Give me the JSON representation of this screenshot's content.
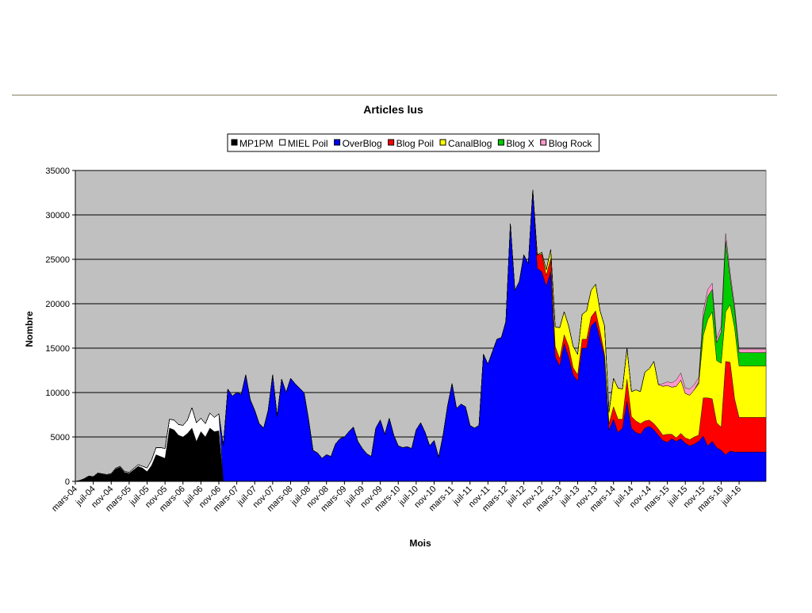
{
  "chart_data": {
    "type": "area",
    "stacked": true,
    "title": "Articles lus",
    "xlabel": "Mois",
    "ylabel": "Nombre",
    "ylim": [
      0,
      35000
    ],
    "yticks": [
      0,
      5000,
      10000,
      15000,
      20000,
      25000,
      30000,
      35000
    ],
    "grid": true,
    "legend_position": "top",
    "plot_background": "#c0c0c0",
    "x_tick_labels": [
      "mars-04",
      "juil-04",
      "nov-04",
      "mars-05",
      "juil-05",
      "nov-05",
      "mars-06",
      "juil-06",
      "nov-06",
      "mars-07",
      "juil-07",
      "nov-07",
      "mars-08",
      "juil-08",
      "nov-08",
      "mars-09",
      "juil-09",
      "nov-09",
      "mars-10",
      "juil-10",
      "nov-10",
      "mars-11",
      "juil-11",
      "nov-11",
      "mars-12",
      "juil-12",
      "nov-12",
      "mars-13",
      "juil-13",
      "nov-13",
      "mars-14",
      "juil-14",
      "nov-14",
      "mars-15",
      "juil-15",
      "nov-15",
      "mars-16",
      "juil-16"
    ],
    "months_count": 155,
    "series": [
      {
        "name": "MP1PM",
        "color": "#000000",
        "kp": [
          [
            0,
            0
          ],
          [
            1,
            100
          ],
          [
            2,
            300
          ],
          [
            3,
            600
          ],
          [
            4,
            500
          ],
          [
            5,
            900
          ],
          [
            6,
            800
          ],
          [
            7,
            700
          ],
          [
            8,
            800
          ],
          [
            9,
            1400
          ],
          [
            10,
            1600
          ],
          [
            11,
            1000
          ],
          [
            12,
            900
          ],
          [
            13,
            1300
          ],
          [
            14,
            1700
          ],
          [
            15,
            1500
          ],
          [
            16,
            1100
          ],
          [
            17,
            1800
          ],
          [
            18,
            3000
          ],
          [
            19,
            2800
          ],
          [
            20,
            2600
          ],
          [
            21,
            6000
          ],
          [
            22,
            5800
          ],
          [
            23,
            5200
          ],
          [
            24,
            5000
          ],
          [
            25,
            5400
          ],
          [
            26,
            6000
          ],
          [
            27,
            4500
          ],
          [
            28,
            5600
          ],
          [
            29,
            5000
          ],
          [
            30,
            6000
          ],
          [
            31,
            5600
          ],
          [
            32,
            5700
          ],
          [
            33,
            0
          ]
        ]
      },
      {
        "name": "MIEL Poil",
        "color": "#ffffff",
        "kp": [
          [
            0,
            0
          ],
          [
            3,
            0
          ],
          [
            6,
            50
          ],
          [
            9,
            80
          ],
          [
            12,
            120
          ],
          [
            15,
            200
          ],
          [
            16,
            400
          ],
          [
            17,
            600
          ],
          [
            18,
            800
          ],
          [
            19,
            1000
          ],
          [
            20,
            1100
          ],
          [
            21,
            1000
          ],
          [
            22,
            1100
          ],
          [
            23,
            1200
          ],
          [
            24,
            1300
          ],
          [
            25,
            1500
          ],
          [
            26,
            2300
          ],
          [
            27,
            2100
          ],
          [
            28,
            1500
          ],
          [
            29,
            1500
          ],
          [
            30,
            1700
          ],
          [
            31,
            1600
          ],
          [
            32,
            1900
          ],
          [
            33,
            0
          ]
        ]
      },
      {
        "name": "OverBlog",
        "color": "#0000ff",
        "kp": [
          [
            0,
            0
          ],
          [
            32,
            0
          ],
          [
            33,
            4000
          ],
          [
            34,
            10400
          ],
          [
            35,
            9600
          ],
          [
            36,
            10000
          ],
          [
            37,
            9800
          ],
          [
            38,
            12000
          ],
          [
            39,
            9200
          ],
          [
            40,
            8000
          ],
          [
            41,
            6500
          ],
          [
            42,
            6000
          ],
          [
            43,
            8000
          ],
          [
            44,
            12000
          ],
          [
            45,
            7300
          ],
          [
            46,
            11500
          ],
          [
            47,
            10000
          ],
          [
            48,
            11600
          ],
          [
            49,
            11000
          ],
          [
            50,
            10500
          ],
          [
            51,
            10000
          ],
          [
            52,
            7000
          ],
          [
            53,
            3500
          ],
          [
            54,
            3200
          ],
          [
            55,
            2600
          ],
          [
            56,
            3000
          ],
          [
            57,
            2800
          ],
          [
            58,
            4200
          ],
          [
            59,
            4800
          ],
          [
            60,
            5000
          ],
          [
            61,
            5600
          ],
          [
            62,
            6100
          ],
          [
            63,
            4500
          ],
          [
            64,
            3700
          ],
          [
            65,
            3100
          ],
          [
            66,
            2800
          ],
          [
            67,
            6000
          ],
          [
            68,
            6900
          ],
          [
            69,
            5300
          ],
          [
            70,
            7100
          ],
          [
            71,
            5200
          ],
          [
            72,
            4000
          ],
          [
            73,
            3800
          ],
          [
            74,
            3900
          ],
          [
            75,
            3700
          ],
          [
            76,
            5800
          ],
          [
            77,
            6600
          ],
          [
            78,
            5500
          ],
          [
            79,
            4000
          ],
          [
            80,
            4600
          ],
          [
            81,
            2700
          ],
          [
            82,
            5200
          ],
          [
            83,
            8500
          ],
          [
            84,
            11000
          ],
          [
            85,
            8200
          ],
          [
            86,
            8700
          ],
          [
            87,
            8400
          ],
          [
            88,
            6300
          ],
          [
            89,
            6000
          ],
          [
            90,
            6300
          ],
          [
            91,
            14300
          ],
          [
            92,
            13200
          ],
          [
            93,
            14600
          ],
          [
            94,
            16000
          ],
          [
            95,
            16200
          ],
          [
            96,
            18000
          ],
          [
            97,
            29000
          ],
          [
            98,
            21500
          ],
          [
            99,
            22500
          ],
          [
            100,
            25500
          ],
          [
            101,
            24500
          ],
          [
            102,
            32800
          ],
          [
            103,
            24000
          ],
          [
            104,
            23600
          ],
          [
            105,
            22000
          ],
          [
            106,
            23600
          ],
          [
            107,
            14000
          ],
          [
            108,
            13000
          ],
          [
            109,
            15500
          ],
          [
            110,
            14000
          ],
          [
            111,
            12000
          ],
          [
            112,
            11300
          ],
          [
            113,
            15000
          ],
          [
            114,
            15000
          ],
          [
            115,
            17500
          ],
          [
            116,
            18000
          ],
          [
            117,
            16000
          ],
          [
            118,
            14000
          ],
          [
            119,
            5800
          ],
          [
            120,
            7000
          ],
          [
            121,
            5500
          ],
          [
            122,
            6000
          ],
          [
            123,
            9000
          ],
          [
            124,
            6000
          ],
          [
            125,
            5500
          ],
          [
            126,
            5300
          ],
          [
            127,
            6000
          ],
          [
            128,
            6200
          ],
          [
            129,
            5800
          ],
          [
            130,
            5200
          ],
          [
            131,
            4600
          ],
          [
            132,
            4400
          ],
          [
            133,
            4800
          ],
          [
            134,
            4500
          ],
          [
            135,
            4800
          ],
          [
            136,
            4300
          ],
          [
            137,
            4000
          ],
          [
            138,
            4200
          ],
          [
            139,
            4500
          ],
          [
            140,
            5100
          ],
          [
            141,
            4000
          ],
          [
            142,
            4500
          ],
          [
            143,
            3800
          ],
          [
            144,
            3500
          ],
          [
            145,
            3000
          ],
          [
            146,
            3400
          ],
          [
            147,
            3300
          ],
          [
            148,
            3300
          ]
        ]
      },
      {
        "name": "Blog Poil",
        "color": "#ff0000",
        "kp": [
          [
            0,
            0
          ],
          [
            102,
            0
          ],
          [
            103,
            1500
          ],
          [
            104,
            2000
          ],
          [
            105,
            1200
          ],
          [
            106,
            1500
          ],
          [
            107,
            1200
          ],
          [
            108,
            800
          ],
          [
            109,
            1000
          ],
          [
            110,
            1200
          ],
          [
            111,
            800
          ],
          [
            112,
            700
          ],
          [
            113,
            1000
          ],
          [
            114,
            1000
          ],
          [
            115,
            1000
          ],
          [
            116,
            1200
          ],
          [
            117,
            900
          ],
          [
            118,
            300
          ],
          [
            119,
            700
          ],
          [
            120,
            1400
          ],
          [
            121,
            1500
          ],
          [
            122,
            1000
          ],
          [
            123,
            2500
          ],
          [
            124,
            1300
          ],
          [
            125,
            1300
          ],
          [
            126,
            1200
          ],
          [
            127,
            800
          ],
          [
            128,
            700
          ],
          [
            129,
            700
          ],
          [
            130,
            700
          ],
          [
            131,
            600
          ],
          [
            132,
            900
          ],
          [
            133,
            500
          ],
          [
            134,
            400
          ],
          [
            135,
            600
          ],
          [
            136,
            600
          ],
          [
            137,
            700
          ],
          [
            138,
            800
          ],
          [
            139,
            700
          ],
          [
            140,
            4300
          ],
          [
            141,
            5400
          ],
          [
            142,
            4800
          ],
          [
            143,
            2800
          ],
          [
            144,
            2600
          ],
          [
            145,
            10500
          ],
          [
            146,
            10000
          ],
          [
            147,
            6000
          ],
          [
            148,
            3900
          ]
        ]
      },
      {
        "name": "CanalBlog",
        "color": "#ffff00",
        "kp": [
          [
            0,
            0
          ],
          [
            103,
            0
          ],
          [
            104,
            200
          ],
          [
            105,
            600
          ],
          [
            106,
            1000
          ],
          [
            107,
            2200
          ],
          [
            108,
            3500
          ],
          [
            109,
            2600
          ],
          [
            110,
            2300
          ],
          [
            111,
            2400
          ],
          [
            112,
            2300
          ],
          [
            113,
            2800
          ],
          [
            114,
            3200
          ],
          [
            115,
            3000
          ],
          [
            116,
            3000
          ],
          [
            117,
            2300
          ],
          [
            118,
            3200
          ],
          [
            119,
            1300
          ],
          [
            120,
            3200
          ],
          [
            121,
            3500
          ],
          [
            122,
            3400
          ],
          [
            123,
            3500
          ],
          [
            124,
            2800
          ],
          [
            125,
            3500
          ],
          [
            126,
            3600
          ],
          [
            127,
            5500
          ],
          [
            128,
            5800
          ],
          [
            129,
            7000
          ],
          [
            130,
            5000
          ],
          [
            131,
            5500
          ],
          [
            132,
            5500
          ],
          [
            133,
            5300
          ],
          [
            134,
            5800
          ],
          [
            135,
            6000
          ],
          [
            136,
            5000
          ],
          [
            137,
            5000
          ],
          [
            138,
            5300
          ],
          [
            139,
            5800
          ],
          [
            140,
            7000
          ],
          [
            141,
            8800
          ],
          [
            142,
            9800
          ],
          [
            143,
            7000
          ],
          [
            144,
            7200
          ],
          [
            145,
            5600
          ],
          [
            146,
            6500
          ],
          [
            147,
            8000
          ],
          [
            148,
            5800
          ]
        ]
      },
      {
        "name": "Blog X",
        "color": "#00cc00",
        "kp": [
          [
            0,
            0
          ],
          [
            138,
            0
          ],
          [
            139,
            200
          ],
          [
            140,
            1900
          ],
          [
            141,
            2600
          ],
          [
            142,
            2500
          ],
          [
            143,
            2000
          ],
          [
            144,
            3500
          ],
          [
            145,
            8000
          ],
          [
            146,
            3000
          ],
          [
            147,
            2000
          ],
          [
            148,
            1500
          ]
        ]
      },
      {
        "name": "Blog Rock",
        "color": "#ff99cc",
        "kp": [
          [
            0,
            0
          ],
          [
            130,
            0
          ],
          [
            131,
            300
          ],
          [
            132,
            400
          ],
          [
            133,
            500
          ],
          [
            134,
            700
          ],
          [
            135,
            800
          ],
          [
            136,
            600
          ],
          [
            137,
            700
          ],
          [
            138,
            600
          ],
          [
            139,
            500
          ],
          [
            140,
            800
          ],
          [
            141,
            800
          ],
          [
            142,
            700
          ],
          [
            143,
            500
          ],
          [
            144,
            600
          ],
          [
            145,
            800
          ],
          [
            146,
            600
          ],
          [
            147,
            500
          ],
          [
            148,
            400
          ]
        ]
      }
    ]
  }
}
